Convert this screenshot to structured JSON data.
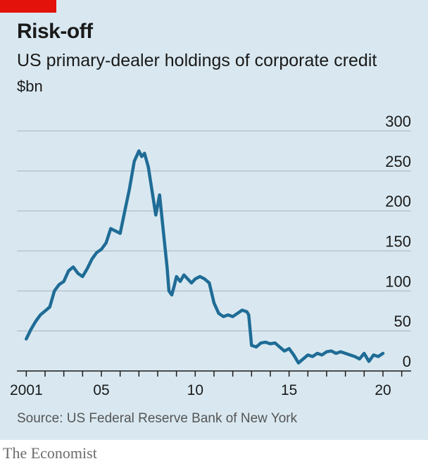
{
  "header": {
    "title": "Risk-off",
    "subtitle": "US primary-dealer holdings of corporate credit",
    "unit": "$bn",
    "accent_color": "#e3120b"
  },
  "source": "Source: US Federal Reserve Bank of New York",
  "brand": "The Economist",
  "chart_data": {
    "type": "line",
    "title": "Risk-off",
    "subtitle": "US primary-dealer holdings of corporate credit",
    "ylabel": "$bn",
    "xlabel": "",
    "xlim": [
      2000.5,
      2021.5
    ],
    "ylim": [
      0,
      300
    ],
    "y_ticks": [
      0,
      50,
      100,
      150,
      200,
      250,
      300
    ],
    "x_ticks": [
      {
        "value": 2001,
        "label": "2001"
      },
      {
        "value": 2005,
        "label": "05"
      },
      {
        "value": 2010,
        "label": "10"
      },
      {
        "value": 2015,
        "label": "15"
      },
      {
        "value": 2020,
        "label": "20"
      }
    ],
    "grid": true,
    "y_axis_side": "right",
    "line_color": "#1f6c96",
    "series": [
      {
        "name": "",
        "x": [
          2001.0,
          2001.25,
          2001.5,
          2001.75,
          2002.0,
          2002.25,
          2002.5,
          2002.75,
          2003.0,
          2003.25,
          2003.5,
          2003.75,
          2004.0,
          2004.25,
          2004.5,
          2004.75,
          2005.0,
          2005.25,
          2005.5,
          2005.75,
          2006.0,
          2006.25,
          2006.5,
          2006.75,
          2007.0,
          2007.15,
          2007.3,
          2007.5,
          2007.7,
          2007.9,
          2008.1,
          2008.3,
          2008.5,
          2008.6,
          2008.75,
          2008.9,
          2009.0,
          2009.2,
          2009.4,
          2009.6,
          2009.8,
          2010.0,
          2010.25,
          2010.5,
          2010.75,
          2011.0,
          2011.25,
          2011.5,
          2011.75,
          2012.0,
          2012.25,
          2012.5,
          2012.75,
          2012.85,
          2012.95,
          2013.0,
          2013.25,
          2013.5,
          2013.75,
          2014.0,
          2014.25,
          2014.5,
          2014.75,
          2015.0,
          2015.25,
          2015.5,
          2015.75,
          2016.0,
          2016.25,
          2016.5,
          2016.75,
          2017.0,
          2017.25,
          2017.5,
          2017.75,
          2018.0,
          2018.25,
          2018.5,
          2018.75,
          2019.0,
          2019.25,
          2019.5,
          2019.75,
          2020.0
        ],
        "values": [
          40,
          52,
          62,
          70,
          75,
          80,
          100,
          108,
          112,
          125,
          130,
          122,
          118,
          128,
          140,
          148,
          152,
          160,
          178,
          175,
          172,
          200,
          228,
          262,
          275,
          268,
          272,
          255,
          225,
          195,
          220,
          175,
          130,
          100,
          95,
          108,
          118,
          112,
          120,
          115,
          110,
          115,
          118,
          115,
          110,
          85,
          72,
          68,
          70,
          68,
          72,
          76,
          74,
          70,
          45,
          32,
          30,
          35,
          36,
          34,
          35,
          30,
          25,
          28,
          20,
          10,
          15,
          20,
          18,
          22,
          20,
          24,
          25,
          22,
          24,
          22,
          20,
          18,
          15,
          22,
          12,
          20,
          18,
          22
        ]
      }
    ]
  }
}
